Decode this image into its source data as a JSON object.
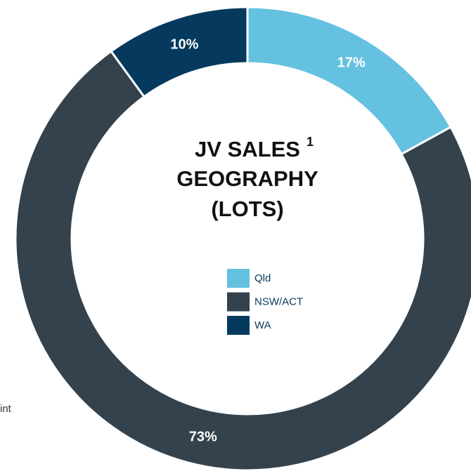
{
  "chart_data": {
    "type": "donut",
    "title_lines": [
      "JV SALES",
      "GEOGRAPHY",
      "(LOTS)"
    ],
    "title_superscript": "1",
    "categories": [
      "Qld",
      "NSW/ACT",
      "WA"
    ],
    "values": [
      17,
      73,
      10
    ],
    "value_labels": [
      "17%",
      "73%",
      "10%"
    ],
    "colors": [
      "#65c1e0",
      "#33424d",
      "#053a5e"
    ],
    "side_text": "int"
  }
}
